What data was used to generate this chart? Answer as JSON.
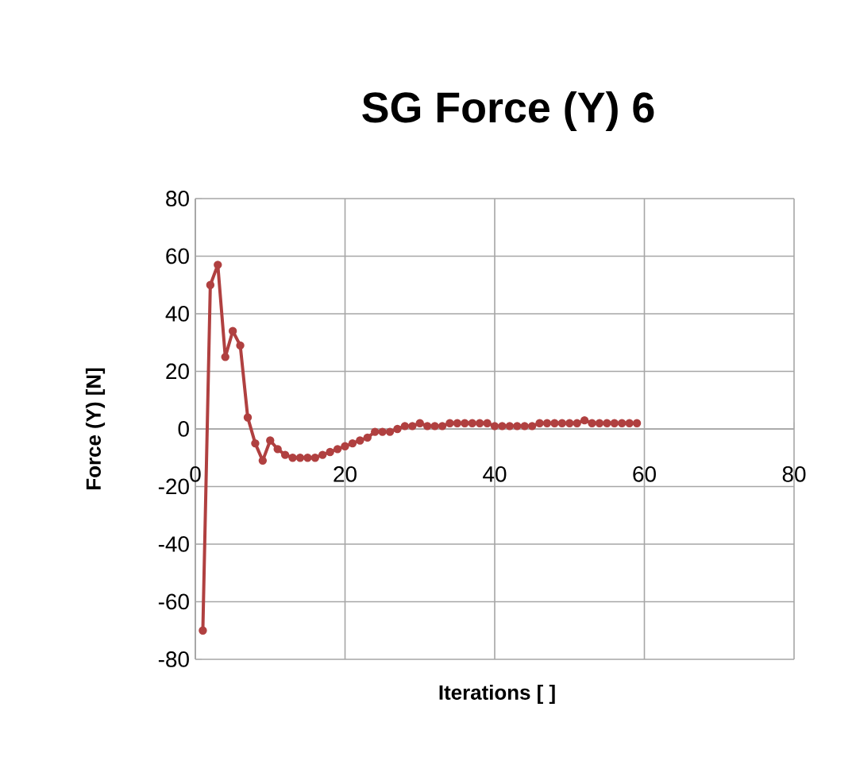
{
  "chart_data": {
    "type": "line",
    "title": "SG Force (Y) 6",
    "xlabel": "Iterations [ ]",
    "ylabel": "Force (Y) [N]",
    "x": [
      1,
      2,
      3,
      4,
      5,
      6,
      7,
      8,
      9,
      10,
      11,
      12,
      13,
      14,
      15,
      16,
      17,
      18,
      19,
      20,
      21,
      22,
      23,
      24,
      25,
      26,
      27,
      28,
      29,
      30,
      31,
      32,
      33,
      34,
      35,
      36,
      37,
      38,
      39,
      40,
      41,
      42,
      43,
      44,
      45,
      46,
      47,
      48,
      49,
      50,
      51,
      52,
      53,
      54,
      55,
      56,
      57,
      58,
      59
    ],
    "series": [
      {
        "color": "#b04040",
        "values": [
          -70,
          50,
          57,
          25,
          34,
          29,
          4,
          -5,
          -11,
          -4,
          -7,
          -9,
          -10,
          -10,
          -10,
          -10,
          -9,
          -8,
          -7,
          -6,
          -5,
          -4,
          -3,
          -1,
          -1,
          -1,
          0,
          1,
          1,
          2,
          1,
          1,
          1,
          2,
          2,
          2,
          2,
          2,
          2,
          1,
          1,
          1,
          1,
          1,
          1,
          2,
          2,
          2,
          2,
          2,
          2,
          3,
          2,
          2,
          2,
          2,
          2,
          2,
          2
        ]
      }
    ],
    "xlim": [
      0,
      80
    ],
    "ylim": [
      -80,
      80
    ],
    "xticks": [
      0,
      20,
      40,
      60,
      80
    ],
    "yticks": [
      -80,
      -60,
      -40,
      -20,
      0,
      20,
      40,
      60,
      80
    ],
    "grid": true,
    "marker": "circle",
    "line_style": "solid"
  }
}
